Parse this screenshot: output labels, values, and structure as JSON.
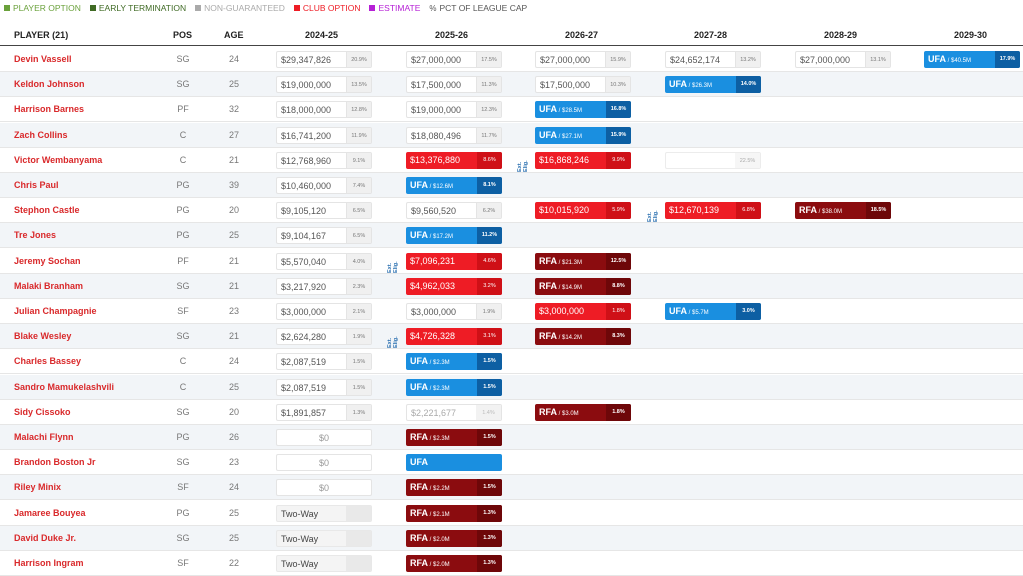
{
  "legend": [
    {
      "label": "PLAYER OPTION",
      "color": "#6aa13b"
    },
    {
      "label": "EARLY TERMINATION",
      "color": "#3f6a24"
    },
    {
      "label": "NON-GUARANTEED",
      "color": "#aaaaaa"
    },
    {
      "label": "CLUB OPTION",
      "color": "#ee1c25"
    },
    {
      "label": "ESTIMATE",
      "color": "#b620d6"
    },
    {
      "label": "PCT OF LEAGUE CAP",
      "color": "#555555",
      "symbol": "%"
    }
  ],
  "headers": {
    "player": "PLAYER (21)",
    "pos": "POS",
    "age": "AGE",
    "seasons": [
      "2024-25",
      "2025-26",
      "2026-27",
      "2027-28",
      "2028-29",
      "2029-30"
    ]
  },
  "rows": [
    {
      "name": "Devin Vassell",
      "pos": "SG",
      "age": "24",
      "cells": [
        {
          "s": 0,
          "t": "plain",
          "v": "$29,347,826",
          "p": "20.9%"
        },
        {
          "s": 1,
          "t": "plain",
          "v": "$27,000,000",
          "p": "17.5%"
        },
        {
          "s": 2,
          "t": "plain",
          "v": "$27,000,000",
          "p": "15.9%"
        },
        {
          "s": 3,
          "t": "plain",
          "v": "$24,652,174",
          "p": "13.2%"
        },
        {
          "s": 4,
          "t": "plain",
          "v": "$27,000,000",
          "p": "13.1%"
        },
        {
          "s": 5,
          "t": "ufa",
          "v": "UFA",
          "sub": "/ $40.5M",
          "p": "17.9%"
        }
      ]
    },
    {
      "name": "Keldon Johnson",
      "pos": "SG",
      "age": "25",
      "cells": [
        {
          "s": 0,
          "t": "plain",
          "v": "$19,000,000",
          "p": "13.5%"
        },
        {
          "s": 1,
          "t": "plain",
          "v": "$17,500,000",
          "p": "11.3%"
        },
        {
          "s": 2,
          "t": "plain",
          "v": "$17,500,000",
          "p": "10.3%"
        },
        {
          "s": 3,
          "t": "ufa",
          "v": "UFA",
          "sub": "/ $26.3M",
          "p": "14.0%"
        }
      ]
    },
    {
      "name": "Harrison Barnes",
      "pos": "PF",
      "age": "32",
      "cells": [
        {
          "s": 0,
          "t": "plain",
          "v": "$18,000,000",
          "p": "12.8%"
        },
        {
          "s": 1,
          "t": "plain",
          "v": "$19,000,000",
          "p": "12.3%"
        },
        {
          "s": 2,
          "t": "ufa",
          "v": "UFA",
          "sub": "/ $28.5M",
          "p": "16.8%"
        }
      ]
    },
    {
      "name": "Zach Collins",
      "pos": "C",
      "age": "27",
      "cells": [
        {
          "s": 0,
          "t": "plain",
          "v": "$16,741,200",
          "p": "11.9%"
        },
        {
          "s": 1,
          "t": "plain",
          "v": "$18,080,496",
          "p": "11.7%"
        },
        {
          "s": 2,
          "t": "ufa",
          "v": "UFA",
          "sub": "/ $27.1M",
          "p": "15.9%"
        }
      ]
    },
    {
      "name": "Victor Wembanyama",
      "pos": "C",
      "age": "21",
      "ext": 1,
      "cells": [
        {
          "s": 0,
          "t": "plain",
          "v": "$12,768,960",
          "p": "9.1%"
        },
        {
          "s": 1,
          "t": "club",
          "v": "$13,376,880",
          "p": "8.6%"
        },
        {
          "s": 2,
          "t": "club",
          "v": "$16,868,246",
          "p": "9.9%"
        },
        {
          "s": 3,
          "t": "est",
          "v": "",
          "p": "22.5%"
        }
      ]
    },
    {
      "name": "Chris Paul",
      "pos": "PG",
      "age": "39",
      "cells": [
        {
          "s": 0,
          "t": "plain",
          "v": "$10,460,000",
          "p": "7.4%"
        },
        {
          "s": 1,
          "t": "ufa",
          "v": "UFA",
          "sub": "/ $12.6M",
          "p": "8.1%"
        }
      ]
    },
    {
      "name": "Stephon Castle",
      "pos": "PG",
      "age": "20",
      "ext": 2,
      "cells": [
        {
          "s": 0,
          "t": "plain",
          "v": "$9,105,120",
          "p": "6.5%"
        },
        {
          "s": 1,
          "t": "plain",
          "v": "$9,560,520",
          "p": "6.2%"
        },
        {
          "s": 2,
          "t": "club",
          "v": "$10,015,920",
          "p": "5.9%"
        },
        {
          "s": 3,
          "t": "club",
          "v": "$12,670,139",
          "p": "6.8%"
        },
        {
          "s": 4,
          "t": "rfa",
          "v": "RFA",
          "sub": "/ $38.0M",
          "p": "18.5%"
        }
      ]
    },
    {
      "name": "Tre Jones",
      "pos": "PG",
      "age": "25",
      "cells": [
        {
          "s": 0,
          "t": "plain",
          "v": "$9,104,167",
          "p": "6.5%"
        },
        {
          "s": 1,
          "t": "ufa",
          "v": "UFA",
          "sub": "/ $17.2M",
          "p": "11.2%"
        }
      ]
    },
    {
      "name": "Jeremy Sochan",
      "pos": "PF",
      "age": "21",
      "ext": 0,
      "cells": [
        {
          "s": 0,
          "t": "plain",
          "v": "$5,570,040",
          "p": "4.0%"
        },
        {
          "s": 1,
          "t": "club",
          "v": "$7,096,231",
          "p": "4.6%"
        },
        {
          "s": 2,
          "t": "rfa",
          "v": "RFA",
          "sub": "/ $21.3M",
          "p": "12.5%"
        }
      ]
    },
    {
      "name": "Malaki Branham",
      "pos": "SG",
      "age": "21",
      "cells": [
        {
          "s": 0,
          "t": "plain",
          "v": "$3,217,920",
          "p": "2.3%"
        },
        {
          "s": 1,
          "t": "club",
          "v": "$4,962,033",
          "p": "3.2%"
        },
        {
          "s": 2,
          "t": "rfa",
          "v": "RFA",
          "sub": "/ $14.9M",
          "p": "8.8%"
        }
      ]
    },
    {
      "name": "Julian Champagnie",
      "pos": "SF",
      "age": "23",
      "cells": [
        {
          "s": 0,
          "t": "plain",
          "v": "$3,000,000",
          "p": "2.1%"
        },
        {
          "s": 1,
          "t": "plain",
          "v": "$3,000,000",
          "p": "1.9%"
        },
        {
          "s": 2,
          "t": "club",
          "v": "$3,000,000",
          "p": "1.8%"
        },
        {
          "s": 3,
          "t": "ufa",
          "v": "UFA",
          "sub": "/ $5.7M",
          "p": "3.0%"
        }
      ]
    },
    {
      "name": "Blake Wesley",
      "pos": "SG",
      "age": "21",
      "ext": 0,
      "cells": [
        {
          "s": 0,
          "t": "plain",
          "v": "$2,624,280",
          "p": "1.9%"
        },
        {
          "s": 1,
          "t": "club",
          "v": "$4,726,328",
          "p": "3.1%"
        },
        {
          "s": 2,
          "t": "rfa",
          "v": "RFA",
          "sub": "/ $14.2M",
          "p": "8.3%"
        }
      ]
    },
    {
      "name": "Charles Bassey",
      "pos": "C",
      "age": "24",
      "cells": [
        {
          "s": 0,
          "t": "plain",
          "v": "$2,087,519",
          "p": "1.5%"
        },
        {
          "s": 1,
          "t": "ufa",
          "v": "UFA",
          "sub": "/ $2.3M",
          "p": "1.5%"
        }
      ]
    },
    {
      "name": "Sandro Mamukelashvili",
      "pos": "C",
      "age": "25",
      "cells": [
        {
          "s": 0,
          "t": "plain",
          "v": "$2,087,519",
          "p": "1.5%"
        },
        {
          "s": 1,
          "t": "ufa",
          "v": "UFA",
          "sub": "/ $2.3M",
          "p": "1.5%"
        }
      ]
    },
    {
      "name": "Sidy Cissoko",
      "pos": "SG",
      "age": "20",
      "cells": [
        {
          "s": 0,
          "t": "plain",
          "v": "$1,891,857",
          "p": "1.3%"
        },
        {
          "s": 1,
          "t": "ng",
          "v": "$2,221,677",
          "p": "1.4%"
        },
        {
          "s": 2,
          "t": "rfa",
          "v": "RFA",
          "sub": "/ $3.0M",
          "p": "1.8%"
        }
      ]
    },
    {
      "name": "Malachi Flynn",
      "pos": "PG",
      "age": "26",
      "cells": [
        {
          "s": 0,
          "t": "zero",
          "v": "$0"
        },
        {
          "s": 1,
          "t": "rfa",
          "v": "RFA",
          "sub": "/ $2.3M",
          "p": "1.5%"
        }
      ]
    },
    {
      "name": "Brandon Boston Jr",
      "pos": "SG",
      "age": "23",
      "cells": [
        {
          "s": 0,
          "t": "zero",
          "v": "$0"
        },
        {
          "s": 1,
          "t": "ufa",
          "v": "UFA",
          "sub": "",
          "p": ""
        }
      ]
    },
    {
      "name": "Riley Minix",
      "pos": "SF",
      "age": "24",
      "cells": [
        {
          "s": 0,
          "t": "zero",
          "v": "$0"
        },
        {
          "s": 1,
          "t": "rfa",
          "v": "RFA",
          "sub": "/ $2.2M",
          "p": "1.5%"
        }
      ]
    },
    {
      "name": "Jamaree Bouyea",
      "pos": "PG",
      "age": "25",
      "cells": [
        {
          "s": 0,
          "t": "tw",
          "v": "Two-Way",
          "p": ""
        },
        {
          "s": 1,
          "t": "rfa",
          "v": "RFA",
          "sub": "/ $2.1M",
          "p": "1.3%"
        }
      ]
    },
    {
      "name": "David Duke Jr.",
      "pos": "SG",
      "age": "25",
      "cells": [
        {
          "s": 0,
          "t": "tw",
          "v": "Two-Way",
          "p": ""
        },
        {
          "s": 1,
          "t": "rfa",
          "v": "RFA",
          "sub": "/ $2.0M",
          "p": "1.3%"
        }
      ]
    },
    {
      "name": "Harrison Ingram",
      "pos": "SF",
      "age": "22",
      "cells": [
        {
          "s": 0,
          "t": "tw",
          "v": "Two-Way",
          "p": ""
        },
        {
          "s": 1,
          "t": "rfa",
          "v": "RFA",
          "sub": "/ $2.0M",
          "p": "1.3%"
        }
      ]
    }
  ],
  "ext_label": "Ext. Elig."
}
